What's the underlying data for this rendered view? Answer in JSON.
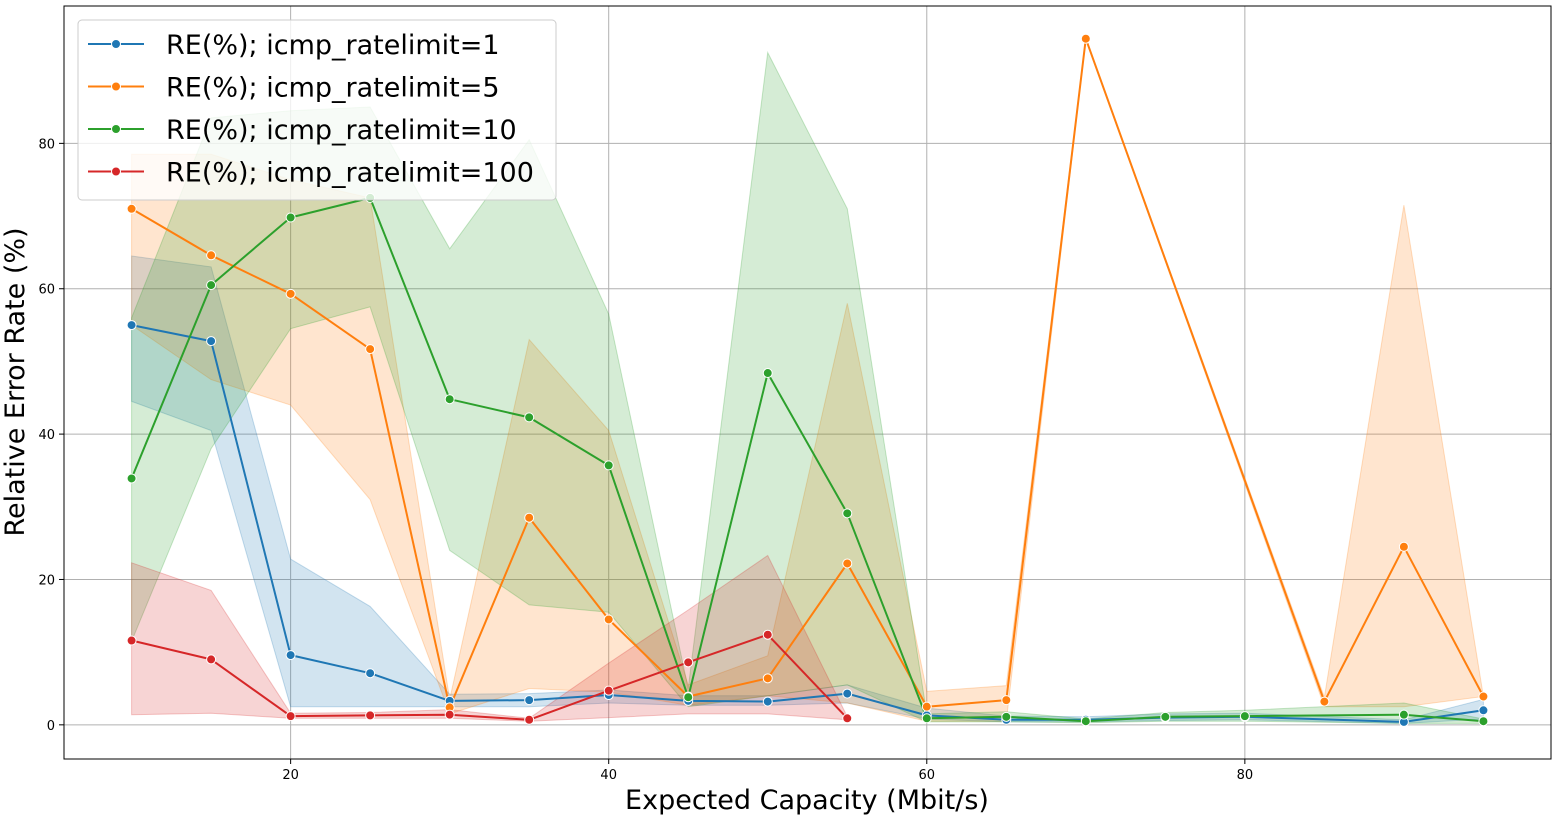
{
  "chart_data": {
    "type": "line",
    "title": "",
    "xlabel": "Expected Capacity (Mbit/s)",
    "ylabel": "Relative Error Rate (%)",
    "xlim": [
      5.75,
      99.25
    ],
    "ylim": [
      -4.7,
      98.9
    ],
    "xticks": [
      20,
      40,
      60,
      80
    ],
    "yticks": [
      0,
      20,
      40,
      60,
      80
    ],
    "grid": true,
    "legend_position": "top-left",
    "series": [
      {
        "name": "RE(%); icmp_ratelimit=1",
        "color": "#1f77b4",
        "x": [
          10,
          15,
          20,
          25,
          30,
          35,
          40,
          45,
          50,
          55,
          60,
          65,
          70,
          75,
          80,
          90,
          95
        ],
        "y": [
          55,
          52.8,
          9.6,
          7.1,
          3.3,
          3.4,
          4.1,
          3.3,
          3.2,
          4.3,
          1.3,
          0.7,
          0.7,
          1.0,
          1.1,
          0.4,
          2.0
        ],
        "lower": [
          44.5,
          40.5,
          2.5,
          2.5,
          2.5,
          2.5,
          3.0,
          2.7,
          2.7,
          3.0,
          0.8,
          0.4,
          0.4,
          0.6,
          0.7,
          0.2,
          0.8
        ],
        "upper": [
          64.5,
          63.0,
          22.8,
          16.3,
          4.2,
          4.3,
          4.8,
          4.0,
          4.0,
          5.5,
          2.3,
          1.2,
          1.1,
          1.5,
          1.6,
          0.7,
          3.5
        ]
      },
      {
        "name": "RE(%); icmp_ratelimit=5",
        "color": "#ff7f0e",
        "x": [
          10,
          15,
          20,
          25,
          30,
          35,
          40,
          45,
          50,
          55,
          60,
          65,
          70,
          85,
          90,
          95
        ],
        "y": [
          71,
          64.6,
          59.3,
          51.7,
          2.4,
          28.5,
          14.5,
          3.9,
          6.4,
          22.2,
          2.5,
          3.4,
          94.4,
          3.2,
          24.5,
          3.9
        ],
        "lower": [
          55,
          47.5,
          44,
          31,
          1.5,
          5.0,
          4.5,
          2.7,
          4.0,
          3.0,
          0.5,
          0.5,
          94.4,
          2.5,
          2.5,
          3.9
        ],
        "upper": [
          78.5,
          78.5,
          75.0,
          72.5,
          3.5,
          53.0,
          40.5,
          5.5,
          9.5,
          58.0,
          4.6,
          5.4,
          94.4,
          3.8,
          71.5,
          3.9
        ]
      },
      {
        "name": "RE(%); icmp_ratelimit=10",
        "color": "#2ca02c",
        "x": [
          10,
          15,
          20,
          25,
          30,
          35,
          40,
          45,
          50,
          55,
          60,
          65,
          70,
          75,
          80,
          90,
          95
        ],
        "y": [
          33.9,
          60.5,
          69.8,
          72.5,
          44.8,
          42.3,
          35.7,
          3.8,
          48.4,
          29.1,
          0.9,
          1.1,
          0.5,
          1.1,
          1.2,
          1.4,
          0.5
        ],
        "lower": [
          11.5,
          38.0,
          54.5,
          57.5,
          24.0,
          16.5,
          15.5,
          2.5,
          4.0,
          5.5,
          0.4,
          0.4,
          0.3,
          0.5,
          0.5,
          0.2,
          0.2
        ],
        "upper": [
          56.0,
          83.5,
          84.5,
          85.0,
          65.5,
          80.5,
          56.5,
          5.0,
          92.5,
          71.0,
          1.5,
          1.8,
          0.8,
          1.7,
          2.0,
          3.0,
          0.8
        ]
      },
      {
        "name": "RE(%); icmp_ratelimit=100",
        "color": "#d62728",
        "x": [
          10,
          15,
          20,
          25,
          30,
          35,
          40,
          45,
          50,
          55
        ],
        "y": [
          11.6,
          9.0,
          1.2,
          1.3,
          1.4,
          0.7,
          4.7,
          8.6,
          12.4,
          0.9
        ],
        "lower": [
          1.4,
          1.6,
          0.9,
          0.9,
          0.9,
          0.5,
          1.0,
          1.5,
          1.5,
          0.7
        ],
        "upper": [
          22.3,
          18.5,
          1.6,
          1.7,
          2.1,
          0.9,
          8.5,
          15.8,
          23.3,
          1.1
        ]
      }
    ]
  }
}
